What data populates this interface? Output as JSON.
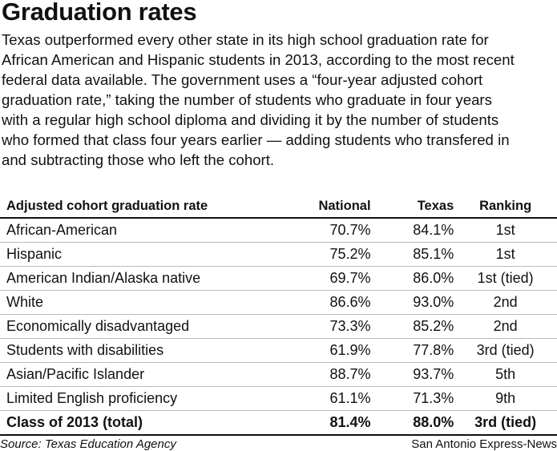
{
  "header": {
    "title": "Graduation rates",
    "description": "Texas outperformed every other state in its high school graduation rate for African American and Hispanic students in 2013, according to the most recent federal data available. The government uses a “four-year adjusted cohort graduation rate,” taking the number of students who graduate in four years with a regular high school diploma and dividing it by the number of students who formed that class four years earlier — adding students who transfered in and subtracting those who left the cohort."
  },
  "table": {
    "columns": [
      "Adjusted cohort graduation rate",
      "National",
      "Texas",
      "Ranking"
    ],
    "rows": [
      [
        "African-American",
        "70.7%",
        "84.1%",
        "1st"
      ],
      [
        "Hispanic",
        "75.2%",
        "85.1%",
        "1st"
      ],
      [
        "American Indian/Alaska native",
        "69.7%",
        "86.0%",
        "1st (tied)"
      ],
      [
        "White",
        "86.6%",
        "93.0%",
        "2nd"
      ],
      [
        "Economically disadvantaged",
        "73.3%",
        "85.2%",
        "2nd"
      ],
      [
        "Students with disabilities",
        "61.9%",
        "77.8%",
        "3rd (tied)"
      ],
      [
        "Asian/Pacific Islander",
        "88.7%",
        "93.7%",
        "5th"
      ],
      [
        "Limited English proficiency",
        "61.1%",
        "71.3%",
        "9th"
      ]
    ],
    "total": [
      "Class of 2013 (total)",
      "81.4%",
      "88.0%",
      "3rd (tied)"
    ]
  },
  "footer": {
    "source": "Source: Texas Education Agency",
    "credit": "San Antonio Express-News"
  }
}
